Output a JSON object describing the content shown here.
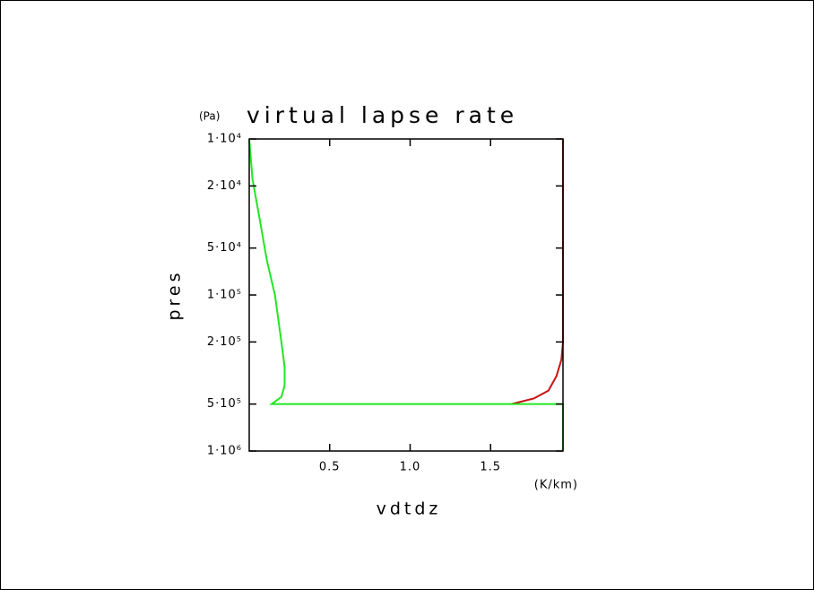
{
  "chart_data": {
    "type": "line",
    "title": "virtual lapse rate",
    "y_unit": "(Pa)",
    "x_unit": "(K/km)",
    "xlabel": "vdtdz",
    "ylabel": "pres",
    "xlim": [
      0,
      1.95
    ],
    "xticks": [
      0.5,
      {
        "value": 1,
        "label": "1.0"
      },
      1.5
    ],
    "ylim": [
      10000,
      1000000
    ],
    "yscale": "log",
    "yinverted": true,
    "yticks": [
      {
        "value": 10000,
        "label": "1·10⁴"
      },
      {
        "value": 20000,
        "label": "2·10⁴"
      },
      {
        "value": 50000,
        "label": "5·10⁴"
      },
      {
        "value": 100000,
        "label": "1·10⁵"
      },
      {
        "value": 200000,
        "label": "2·10⁵"
      },
      {
        "value": 500000,
        "label": "5·10⁵"
      },
      {
        "value": 1000000,
        "label": "1·10⁶"
      }
    ],
    "series": [
      {
        "color": "#c81414",
        "x": [
          1.95,
          1.95,
          1.94,
          1.91,
          1.86,
          1.77,
          1.63
        ],
        "values": [
          10000,
          200000,
          260000,
          330000,
          410000,
          460000,
          500000
        ]
      },
      {
        "color": "#22e622",
        "x": [
          0,
          0.02,
          0.07,
          0.11,
          0.16,
          0.2,
          0.22,
          0.22,
          0.2,
          0.14,
          1.95,
          1.95
        ],
        "values": [
          10000,
          18000,
          35000,
          60000,
          100000,
          200000,
          290000,
          380000,
          450000,
          500000,
          500000,
          1000000
        ]
      }
    ]
  }
}
